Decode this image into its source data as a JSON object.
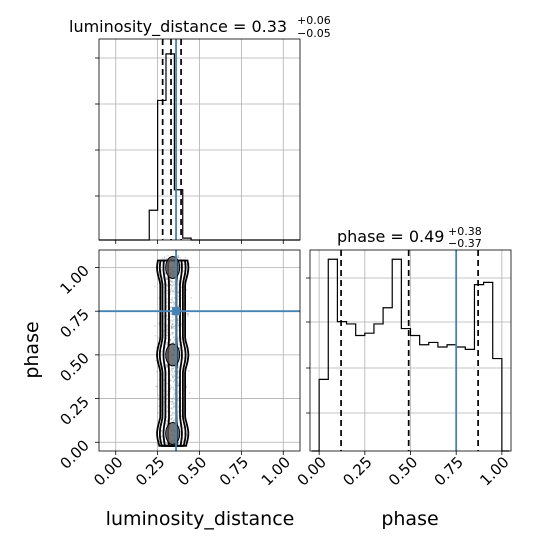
{
  "chart_data": {
    "type": "corner",
    "parameters": [
      "luminosity_distance",
      "phase"
    ],
    "truths": {
      "luminosity_distance": 0.36,
      "phase": 0.75
    },
    "quantiles": [
      0.16,
      0.5,
      0.84
    ],
    "grid": true,
    "panels": [
      {
        "id": "hist-luminosity-distance",
        "type": "histogram",
        "parameter": "luminosity_distance",
        "title": {
          "main": "luminosity_distance = 0.33",
          "plus": "+0.06",
          "minus": "−0.05"
        },
        "xlim": [
          -0.1,
          1.1
        ],
        "bin_edges": [
          -0.1,
          -0.05,
          0.0,
          0.05,
          0.1,
          0.15,
          0.2,
          0.25,
          0.3,
          0.35,
          0.4,
          0.45,
          0.5,
          0.55,
          0.6,
          0.65,
          0.7,
          0.75,
          0.8,
          0.85,
          0.9,
          0.95,
          1.0,
          1.05,
          1.1
        ],
        "counts": [
          0,
          0,
          0,
          0,
          0,
          0,
          0.16,
          0.75,
          1.0,
          0.27,
          0.01,
          0,
          0,
          0,
          0,
          0,
          0,
          0,
          0,
          0,
          0,
          0,
          0,
          0
        ],
        "ylim": [
          0,
          1.08
        ],
        "quantile_values": [
          0.28,
          0.33,
          0.39
        ],
        "truth": 0.36
      },
      {
        "id": "hist-phase",
        "type": "histogram",
        "parameter": "phase",
        "title": {
          "main": "phase = 0.49",
          "plus": "+0.38",
          "minus": "−0.37"
        },
        "xlim": [
          -0.05,
          1.05
        ],
        "bin_edges": [
          -0.04,
          0.0,
          0.05,
          0.1,
          0.15,
          0.2,
          0.25,
          0.3,
          0.35,
          0.4,
          0.45,
          0.5,
          0.55,
          0.6,
          0.65,
          0.7,
          0.75,
          0.8,
          0.85,
          0.9,
          0.95,
          1.0,
          1.04
        ],
        "counts": [
          0.0,
          0.31,
          0.83,
          0.56,
          0.55,
          0.5,
          0.51,
          0.55,
          0.62,
          0.83,
          0.53,
          0.5,
          0.46,
          0.47,
          0.45,
          0.46,
          0.45,
          0.44,
          0.72,
          0.73,
          0.4,
          0.0
        ],
        "ylim": [
          0,
          0.87
        ],
        "quantile_values": [
          0.12,
          0.49,
          0.87
        ],
        "truth": 0.75
      },
      {
        "id": "scatter-phase-vs-luminosity-distance",
        "type": "2d-density",
        "x": "luminosity_distance",
        "y": "phase",
        "xlim": [
          -0.1,
          1.1
        ],
        "ylim": [
          -0.05,
          1.1
        ],
        "x_ticks": [
          0.0,
          0.25,
          0.5,
          0.75,
          1.0
        ],
        "y_ticks": [
          0.0,
          0.25,
          0.5,
          0.75,
          1.0
        ],
        "x_tick_labels": [
          "0.00",
          "0.25",
          "0.50",
          "0.75",
          "1.00"
        ],
        "y_tick_labels": [
          "0.00",
          "0.25",
          "0.50",
          "0.75",
          "1.00"
        ],
        "density_peaks_phase": [
          0.05,
          0.5,
          1.0
        ],
        "point_spread": {
          "x_center": 0.34,
          "x_halfwidth": 0.12,
          "y_min": -0.02,
          "y_max": 1.07
        },
        "contours": [
          {
            "level": 1,
            "width": 0.085,
            "shade": "#e8e8e8"
          },
          {
            "level": 2,
            "width": 0.07,
            "shade": "#c9c9c9"
          },
          {
            "level": 3,
            "width": 0.05,
            "shade": "#a5a5a5"
          },
          {
            "level": 4,
            "width": 0.025,
            "shade": "#6d6d6d"
          }
        ],
        "truth": {
          "x": 0.36,
          "y": 0.75
        }
      }
    ],
    "axes": {
      "x_label_left": "luminosity_distance",
      "x_label_right": "phase",
      "y_label": "phase",
      "x_tick_labels_left": [
        "0.00",
        "0.25",
        "0.50",
        "0.75",
        "1.00"
      ],
      "x_tick_labels_right": [
        "0.00",
        "0.25",
        "0.50",
        "0.75",
        "1.00"
      ],
      "y_tick_labels": [
        "0.00",
        "0.25",
        "0.50",
        "0.75",
        "1.00"
      ]
    },
    "colors": {
      "truth": "#4682b4",
      "grid": "#b0b0b0",
      "line": "#000000",
      "points": "#808080"
    }
  }
}
